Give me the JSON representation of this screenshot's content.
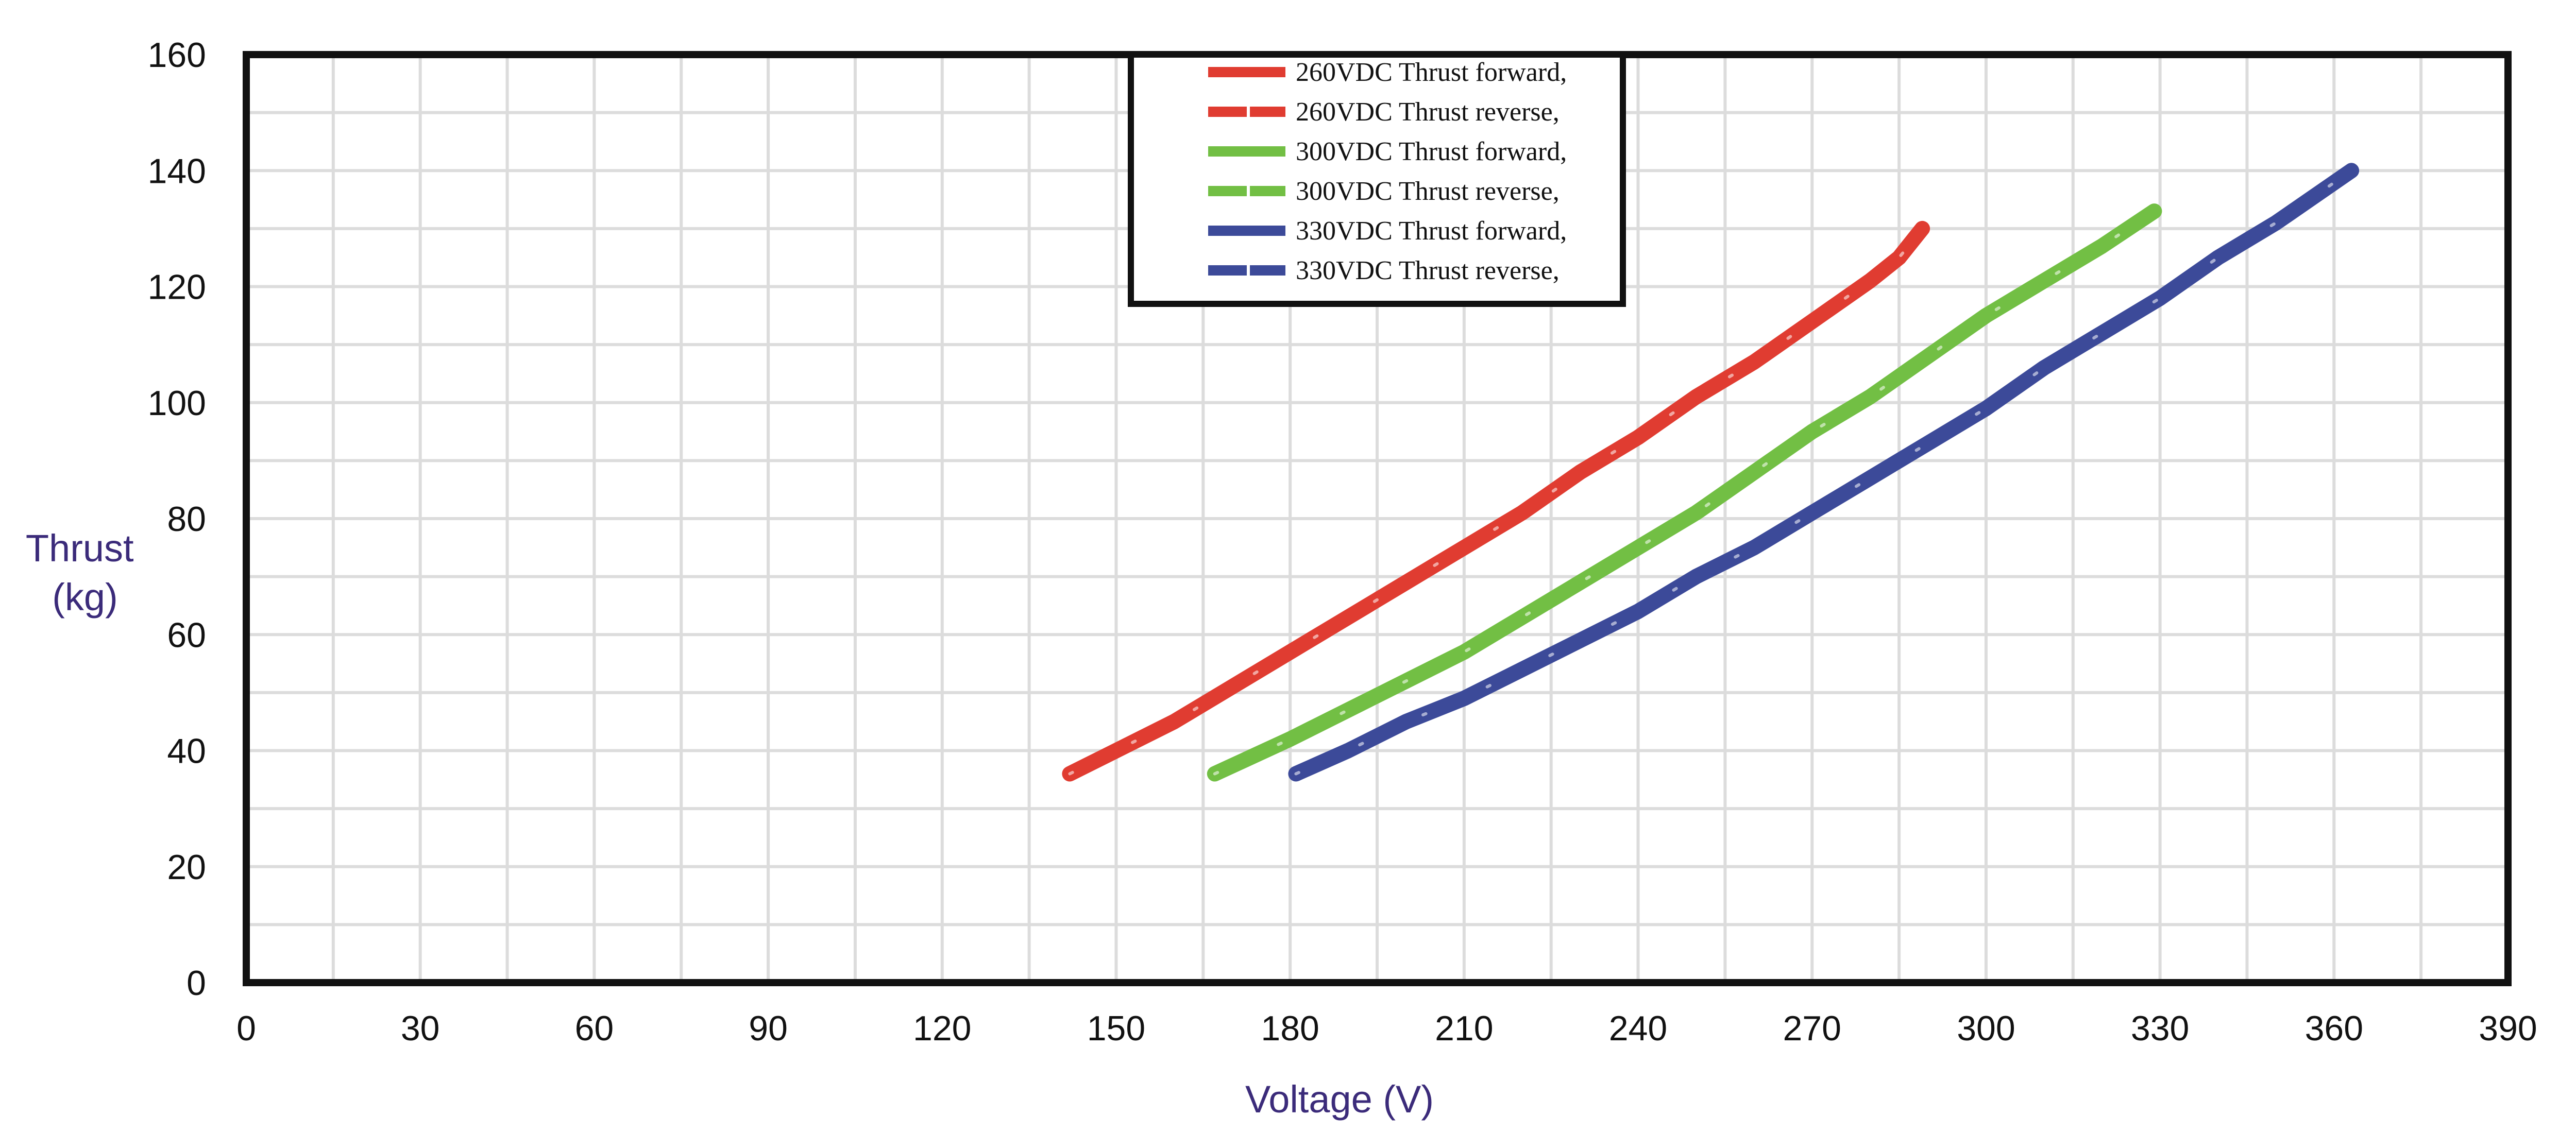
{
  "chart_data": {
    "type": "line",
    "title": "",
    "xlabel": "Voltage (V)",
    "ylabel_lines": [
      "Thrust",
      "(kg)"
    ],
    "xlim": [
      0,
      390
    ],
    "ylim": [
      0,
      160
    ],
    "x_ticks": [
      0,
      30,
      60,
      90,
      120,
      150,
      180,
      210,
      240,
      270,
      300,
      330,
      360,
      390
    ],
    "y_ticks": [
      0,
      20,
      40,
      60,
      80,
      100,
      120,
      140,
      160
    ],
    "x_minor_step": 15,
    "y_minor_step": 10,
    "grid": true,
    "legend_position": "top-center",
    "series": [
      {
        "name": "260VDC  Thrust forward,",
        "color": "#e03c31",
        "style": "solid",
        "points": [
          [
            142,
            36
          ],
          [
            150,
            40
          ],
          [
            160,
            45
          ],
          [
            170,
            51
          ],
          [
            180,
            57
          ],
          [
            190,
            63
          ],
          [
            200,
            69
          ],
          [
            210,
            75
          ],
          [
            220,
            81
          ],
          [
            230,
            88
          ],
          [
            240,
            94
          ],
          [
            250,
            101
          ],
          [
            260,
            107
          ],
          [
            270,
            114
          ],
          [
            280,
            121
          ],
          [
            285,
            125
          ],
          [
            289,
            130
          ]
        ]
      },
      {
        "name": "260VDC  Thrust reverse,",
        "color": "#e03c31",
        "style": "dashed",
        "points": [
          [
            142,
            36
          ],
          [
            150,
            40
          ],
          [
            160,
            45
          ],
          [
            170,
            51
          ],
          [
            180,
            57
          ],
          [
            190,
            63
          ],
          [
            200,
            69
          ],
          [
            210,
            75
          ],
          [
            220,
            81
          ],
          [
            230,
            88
          ],
          [
            240,
            94
          ],
          [
            250,
            101
          ],
          [
            260,
            107
          ],
          [
            270,
            114
          ],
          [
            280,
            121
          ],
          [
            285,
            125
          ],
          [
            289,
            130
          ]
        ]
      },
      {
        "name": "300VDC  Thrust forward,",
        "color": "#72bf44",
        "style": "solid",
        "points": [
          [
            167,
            36
          ],
          [
            180,
            42
          ],
          [
            190,
            47
          ],
          [
            200,
            52
          ],
          [
            210,
            57
          ],
          [
            220,
            63
          ],
          [
            230,
            69
          ],
          [
            240,
            75
          ],
          [
            250,
            81
          ],
          [
            260,
            88
          ],
          [
            270,
            95
          ],
          [
            280,
            101
          ],
          [
            290,
            108
          ],
          [
            300,
            115
          ],
          [
            310,
            121
          ],
          [
            320,
            127
          ],
          [
            329,
            133
          ]
        ]
      },
      {
        "name": "300VDC  Thrust reverse,",
        "color": "#72bf44",
        "style": "dashed",
        "points": [
          [
            167,
            36
          ],
          [
            180,
            42
          ],
          [
            190,
            47
          ],
          [
            200,
            52
          ],
          [
            210,
            57
          ],
          [
            220,
            63
          ],
          [
            230,
            69
          ],
          [
            240,
            75
          ],
          [
            250,
            81
          ],
          [
            260,
            88
          ],
          [
            270,
            95
          ],
          [
            280,
            101
          ],
          [
            290,
            108
          ],
          [
            300,
            115
          ],
          [
            310,
            121
          ],
          [
            320,
            127
          ],
          [
            329,
            133
          ]
        ]
      },
      {
        "name": "330VDC  Thrust forward,",
        "color": "#3c4a99",
        "style": "solid",
        "points": [
          [
            181,
            36
          ],
          [
            190,
            40
          ],
          [
            200,
            45
          ],
          [
            210,
            49
          ],
          [
            220,
            54
          ],
          [
            230,
            59
          ],
          [
            240,
            64
          ],
          [
            250,
            70
          ],
          [
            260,
            75
          ],
          [
            270,
            81
          ],
          [
            280,
            87
          ],
          [
            290,
            93
          ],
          [
            300,
            99
          ],
          [
            310,
            106
          ],
          [
            320,
            112
          ],
          [
            330,
            118
          ],
          [
            340,
            125
          ],
          [
            350,
            131
          ],
          [
            363,
            140
          ]
        ]
      },
      {
        "name": "330VDC  Thrust reverse,",
        "color": "#3c4a99",
        "style": "dashed",
        "points": [
          [
            181,
            36
          ],
          [
            190,
            40
          ],
          [
            200,
            45
          ],
          [
            210,
            49
          ],
          [
            220,
            54
          ],
          [
            230,
            59
          ],
          [
            240,
            64
          ],
          [
            250,
            70
          ],
          [
            260,
            75
          ],
          [
            270,
            81
          ],
          [
            280,
            87
          ],
          [
            290,
            93
          ],
          [
            300,
            99
          ],
          [
            310,
            106
          ],
          [
            320,
            112
          ],
          [
            330,
            118
          ],
          [
            340,
            125
          ],
          [
            350,
            131
          ],
          [
            363,
            140
          ]
        ]
      }
    ]
  }
}
